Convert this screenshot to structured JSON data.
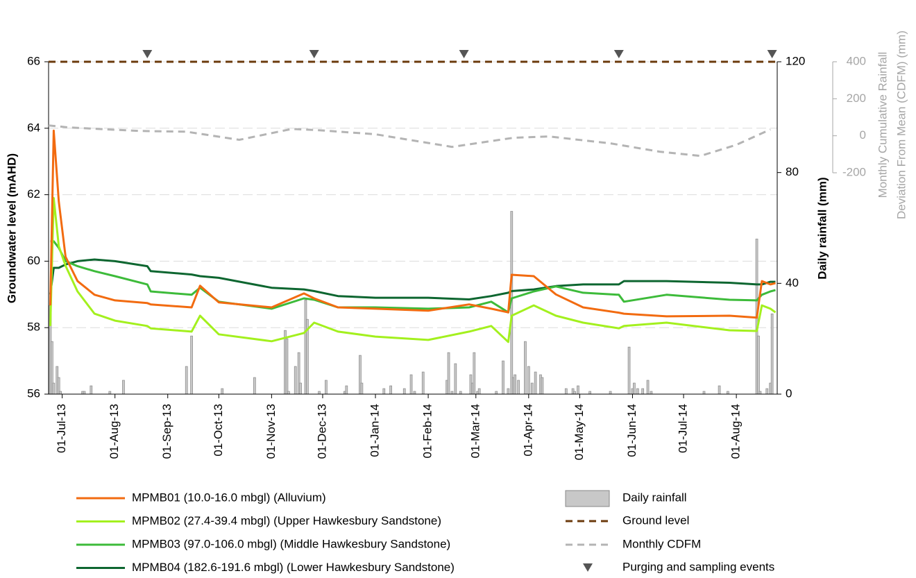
{
  "chart_data": {
    "type": "line",
    "ylabel": "Groundwater level (mAHD)",
    "y2label": "Daily rainfall (mm)",
    "y3label": [
      "Monthly Cumulative Rainfall",
      "Deviation From Mean (CDFM) (mm)"
    ],
    "xlim": [
      "2013-06-23",
      "2014-08-25"
    ],
    "xticks": [
      {
        "value": "2013-07-01",
        "label": "01-Jul-13"
      },
      {
        "value": "2013-08-01",
        "label": "01-Aug-13"
      },
      {
        "value": "2013-09-01",
        "label": "01-Sep-13"
      },
      {
        "value": "2013-10-01",
        "label": "01-Oct-13"
      },
      {
        "value": "2013-11-01",
        "label": "01-Nov-13"
      },
      {
        "value": "2013-12-01",
        "label": "01-Dec-13"
      },
      {
        "value": "2014-01-01",
        "label": "01-Jan-14"
      },
      {
        "value": "2014-02-01",
        "label": "01-Feb-14"
      },
      {
        "value": "2014-03-01",
        "label": "01-Mar-14"
      },
      {
        "value": "2014-04-01",
        "label": "01-Apr-14"
      },
      {
        "value": "2014-05-01",
        "label": "01-May-14"
      },
      {
        "value": "2014-06-01",
        "label": "01-Jun-14"
      },
      {
        "value": "2014-07-01",
        "label": "01-Jul-14"
      },
      {
        "value": "2014-08-01",
        "label": "01-Aug-14"
      }
    ],
    "ylim": [
      56,
      66
    ],
    "yticks": [
      56,
      58,
      60,
      62,
      64,
      66
    ],
    "y2lim": [
      0,
      120
    ],
    "y2ticks": [
      0,
      40,
      80,
      120
    ],
    "y3lim": [
      -200,
      400
    ],
    "y3ticks": [
      -200,
      0,
      200,
      400
    ],
    "grid": true,
    "x": [
      "2013-06-24",
      "2013-06-26",
      "2013-06-29",
      "2013-07-03",
      "2013-07-10",
      "2013-07-20",
      "2013-08-01",
      "2013-08-20",
      "2013-08-22",
      "2013-09-15",
      "2013-09-20",
      "2013-10-01",
      "2013-11-01",
      "2013-11-20",
      "2013-11-26",
      "2013-12-10",
      "2014-01-01",
      "2014-02-01",
      "2014-02-25",
      "2014-03-10",
      "2014-03-20",
      "2014-03-22",
      "2014-04-04",
      "2014-04-17",
      "2014-05-03",
      "2014-05-24",
      "2014-05-27",
      "2014-06-21",
      "2014-07-28",
      "2014-08-13",
      "2014-08-16",
      "2014-08-21",
      "2014-08-24"
    ],
    "series": [
      {
        "name": "MPMB01 (10.0-16.0 mbgl) (Alluvium)",
        "color": "#f26b10",
        "values": [
          58.67,
          63.93,
          61.8,
          60.13,
          59.4,
          58.99,
          58.82,
          58.74,
          58.7,
          58.61,
          59.26,
          58.76,
          58.61,
          59.03,
          58.88,
          58.61,
          58.57,
          58.51,
          58.7,
          58.57,
          58.46,
          59.59,
          59.55,
          59.0,
          58.61,
          58.45,
          58.42,
          58.34,
          58.36,
          58.3,
          59.4,
          59.3,
          59.34
        ]
      },
      {
        "name": "MPMB02 (27.4-39.4 mbgl) (Upper Hawkesbury Sandstone)",
        "color": "#a3f01e",
        "values": [
          58.05,
          61.9,
          60.45,
          59.86,
          59.09,
          58.42,
          58.21,
          58.05,
          57.98,
          57.88,
          58.36,
          57.8,
          57.59,
          57.84,
          58.15,
          57.88,
          57.73,
          57.63,
          57.88,
          58.05,
          57.57,
          58.36,
          58.67,
          58.36,
          58.15,
          57.98,
          58.05,
          58.15,
          57.92,
          57.9,
          58.67,
          58.57,
          58.46
        ]
      },
      {
        "name": "MPMB03 (97.0-106.0 mbgl) (Middle Hawkesbury Sandstone)",
        "color": "#3dbb3a",
        "values": [
          60.6,
          60.6,
          60.4,
          60.0,
          59.85,
          59.7,
          59.55,
          59.3,
          59.09,
          58.99,
          59.2,
          58.78,
          58.57,
          58.88,
          58.84,
          58.61,
          58.61,
          58.57,
          58.61,
          58.78,
          58.46,
          58.88,
          59.09,
          59.24,
          59.05,
          58.99,
          58.78,
          58.99,
          58.84,
          58.82,
          58.99,
          59.09,
          59.13
        ]
      },
      {
        "name": "MPMB04 (182.6-191.6 mbgl) (Lower Hawkesbury Sandstone)",
        "color": "#0d6630",
        "values": [
          59.0,
          59.8,
          59.8,
          59.9,
          60.0,
          60.05,
          60.0,
          59.85,
          59.7,
          59.6,
          59.55,
          59.5,
          59.2,
          59.15,
          59.1,
          58.95,
          58.9,
          58.9,
          58.85,
          58.95,
          59.05,
          59.1,
          59.15,
          59.25,
          59.3,
          59.3,
          59.4,
          59.4,
          59.35,
          59.3,
          59.3,
          59.38,
          59.38
        ]
      }
    ],
    "rainfall": {
      "name": "Daily rainfall",
      "color": "#c8c8c8",
      "axis": "y2",
      "x": [
        "2013-06-24",
        "2013-06-25",
        "2013-06-26",
        "2013-06-28",
        "2013-06-29",
        "2013-06-30",
        "2013-07-13",
        "2013-07-14",
        "2013-07-18",
        "2013-07-29",
        "2013-08-06",
        "2013-09-12",
        "2013-09-15",
        "2013-10-03",
        "2013-10-22",
        "2013-11-09",
        "2013-11-10",
        "2013-11-11",
        "2013-11-15",
        "2013-11-17",
        "2013-11-18",
        "2013-11-21",
        "2013-11-22",
        "2013-11-29",
        "2013-12-03",
        "2013-12-14",
        "2013-12-15",
        "2013-12-23",
        "2013-12-24",
        "2014-01-06",
        "2014-01-10",
        "2014-01-18",
        "2014-01-22",
        "2014-01-24",
        "2014-01-29",
        "2014-02-12",
        "2014-02-13",
        "2014-02-15",
        "2014-02-17",
        "2014-02-20",
        "2014-02-26",
        "2014-02-27",
        "2014-02-28",
        "2014-03-02",
        "2014-03-03",
        "2014-03-13",
        "2014-03-17",
        "2014-03-20",
        "2014-03-22",
        "2014-03-23",
        "2014-03-24",
        "2014-03-26",
        "2014-03-30",
        "2014-04-01",
        "2014-04-03",
        "2014-04-05",
        "2014-04-08",
        "2014-04-09",
        "2014-04-23",
        "2014-04-27",
        "2014-04-28",
        "2014-04-30",
        "2014-05-07",
        "2014-05-19",
        "2014-05-30",
        "2014-06-01",
        "2014-06-02",
        "2014-06-04",
        "2014-06-07",
        "2014-06-10",
        "2014-06-12",
        "2014-07-13",
        "2014-07-22",
        "2014-07-27",
        "2014-08-13",
        "2014-08-14",
        "2014-08-15",
        "2014-08-19",
        "2014-08-21",
        "2014-08-22"
      ],
      "values": [
        32,
        19,
        4,
        10,
        6,
        1,
        1,
        1,
        3,
        1,
        5,
        10,
        21,
        2,
        6,
        23,
        20,
        1,
        10,
        15,
        4,
        34,
        27,
        1,
        5,
        1,
        3,
        14,
        4,
        2,
        3,
        2,
        7,
        1,
        8,
        5,
        15,
        1,
        11,
        1,
        7,
        4,
        15,
        1,
        2,
        1,
        12,
        2,
        66,
        6,
        7,
        5,
        19,
        10,
        4,
        8,
        7,
        6,
        2,
        2,
        1,
        3,
        1,
        1,
        17,
        2,
        4,
        2,
        2,
        5,
        1,
        1,
        3,
        1,
        56,
        21,
        1,
        2,
        4,
        29
      ]
    },
    "ground_level": {
      "name": "Ground level",
      "color": "#6b3a0c",
      "value": 66
    },
    "cdfm": {
      "name": "Monthly CDFM",
      "color": "#b4b4b4",
      "axis": "y3",
      "x": [
        "2013-06-23",
        "2013-07-05",
        "2013-08-15",
        "2013-09-12",
        "2013-10-13",
        "2013-11-13",
        "2013-11-29",
        "2014-01-01",
        "2014-02-15",
        "2014-03-23",
        "2014-04-13",
        "2014-05-19",
        "2014-06-17",
        "2014-07-11",
        "2014-08-01",
        "2014-08-21"
      ],
      "values": [
        56,
        45,
        26,
        22,
        -22,
        37,
        30,
        8,
        -60,
        -11,
        -4,
        -41,
        -86,
        -109,
        -49,
        34
      ]
    },
    "sampling": {
      "name": "Purging and sampling events",
      "color": "#555555",
      "x": [
        "2013-08-20",
        "2013-11-26",
        "2014-02-22",
        "2014-05-24",
        "2014-08-22"
      ]
    }
  }
}
